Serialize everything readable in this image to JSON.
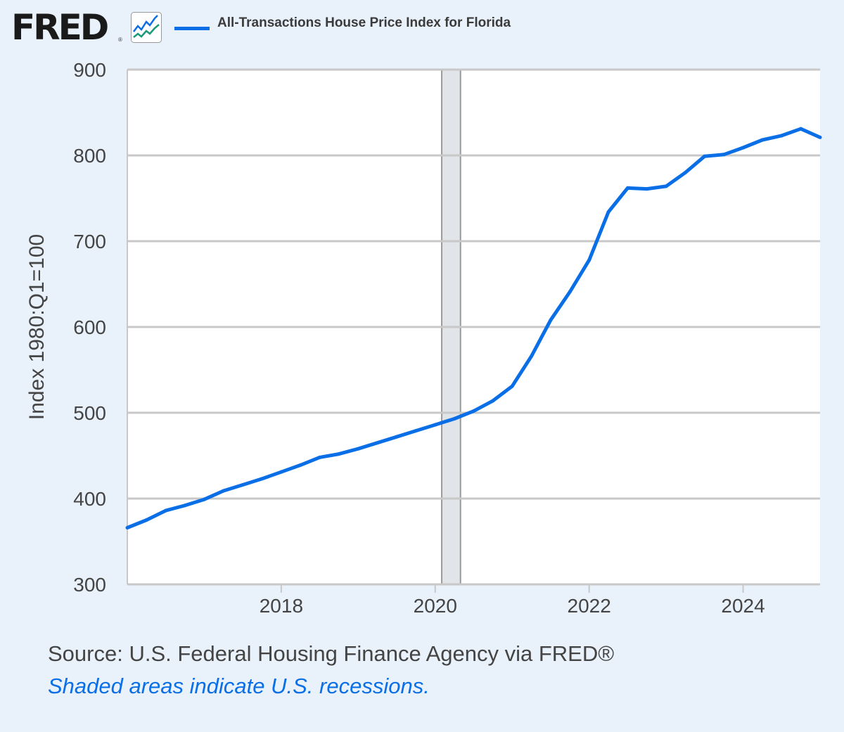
{
  "logo": {
    "text": "FRED",
    "reg": "®"
  },
  "legend": {
    "label": "All-Transactions House Price Index for Florida",
    "color": "#0a6fe6"
  },
  "source": "Source: U.S. Federal Housing Finance Agency via FRED®",
  "note": "Shaded areas indicate U.S. recessions.",
  "chart_data": {
    "type": "line",
    "title": "",
    "xlabel": "",
    "ylabel": "Index 1980:Q1=100",
    "ylim": [
      300,
      900
    ],
    "xlim": [
      "2016-01-01",
      "2025-01-01"
    ],
    "yticks": [
      "300",
      "400",
      "500",
      "600",
      "700",
      "800",
      "900"
    ],
    "xticks": [
      "2018",
      "2020",
      "2022",
      "2024"
    ],
    "grid": true,
    "legend_position": "top",
    "recessions": [
      {
        "start": "2020-02-01",
        "end": "2020-04-30"
      }
    ],
    "frequency": "quarterly",
    "series": [
      {
        "name": "All-Transactions House Price Index for Florida",
        "color": "#0a6fe6",
        "x": [
          "2016-Q1",
          "2016-Q2",
          "2016-Q3",
          "2016-Q4",
          "2017-Q1",
          "2017-Q2",
          "2017-Q3",
          "2017-Q4",
          "2018-Q1",
          "2018-Q2",
          "2018-Q3",
          "2018-Q4",
          "2019-Q1",
          "2019-Q2",
          "2019-Q3",
          "2019-Q4",
          "2020-Q1",
          "2020-Q2",
          "2020-Q3",
          "2020-Q4",
          "2021-Q1",
          "2021-Q2",
          "2021-Q3",
          "2021-Q4",
          "2022-Q1",
          "2022-Q2",
          "2022-Q3",
          "2022-Q4",
          "2023-Q1",
          "2023-Q2",
          "2023-Q3",
          "2023-Q4",
          "2024-Q1",
          "2024-Q2",
          "2024-Q3",
          "2024-Q4",
          "2025-Q1"
        ],
        "values": [
          366,
          375,
          386,
          392,
          399,
          409,
          416,
          423,
          431,
          439,
          448,
          452,
          458,
          465,
          472,
          479,
          486,
          493,
          502,
          514,
          531,
          566,
          608,
          641,
          678,
          734,
          762,
          761,
          764,
          780,
          799,
          801,
          809,
          818,
          823,
          831,
          821
        ]
      }
    ]
  }
}
